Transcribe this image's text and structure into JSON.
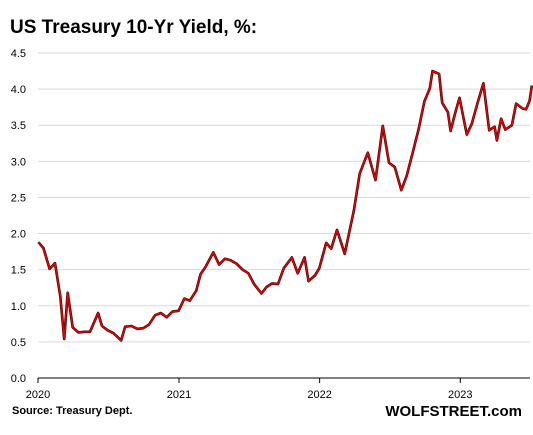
{
  "chart_data": {
    "type": "line",
    "title": "US Treasury  10-Yr Yield, %:",
    "xlabel": "",
    "ylabel": "",
    "ylim": [
      0.0,
      4.5
    ],
    "y_ticks": [
      "0.0",
      "0.5",
      "1.0",
      "1.5",
      "2.0",
      "2.5",
      "3.0",
      "3.5",
      "4.0",
      "4.5"
    ],
    "x_ticks": [
      "2020",
      "2021",
      "2022",
      "2023"
    ],
    "xlim": [
      "2020-01-01",
      "2023-07-01"
    ],
    "grid": true,
    "series": [
      {
        "color": "#e60000",
        "points": [
          [
            "2020-01-02",
            1.88
          ],
          [
            "2020-01-15",
            1.8
          ],
          [
            "2020-01-31",
            1.51
          ],
          [
            "2020-02-14",
            1.59
          ],
          [
            "2020-02-28",
            1.13
          ],
          [
            "2020-03-09",
            0.54
          ],
          [
            "2020-03-18",
            1.18
          ],
          [
            "2020-03-31",
            0.7
          ],
          [
            "2020-04-15",
            0.63
          ],
          [
            "2020-04-30",
            0.64
          ],
          [
            "2020-05-15",
            0.64
          ],
          [
            "2020-06-05",
            0.9
          ],
          [
            "2020-06-15",
            0.72
          ],
          [
            "2020-06-30",
            0.66
          ],
          [
            "2020-07-15",
            0.62
          ],
          [
            "2020-08-04",
            0.52
          ],
          [
            "2020-08-14",
            0.71
          ],
          [
            "2020-08-31",
            0.72
          ],
          [
            "2020-09-15",
            0.68
          ],
          [
            "2020-09-30",
            0.69
          ],
          [
            "2020-10-15",
            0.74
          ],
          [
            "2020-10-31",
            0.87
          ],
          [
            "2020-11-15",
            0.9
          ],
          [
            "2020-11-30",
            0.84
          ],
          [
            "2020-12-15",
            0.92
          ],
          [
            "2020-12-31",
            0.93
          ],
          [
            "2021-01-15",
            1.1
          ],
          [
            "2021-01-29",
            1.07
          ],
          [
            "2021-02-15",
            1.21
          ],
          [
            "2021-02-26",
            1.44
          ],
          [
            "2021-03-10",
            1.53
          ],
          [
            "2021-03-31",
            1.74
          ],
          [
            "2021-04-15",
            1.57
          ],
          [
            "2021-04-30",
            1.65
          ],
          [
            "2021-05-15",
            1.63
          ],
          [
            "2021-05-31",
            1.58
          ],
          [
            "2021-06-15",
            1.5
          ],
          [
            "2021-06-30",
            1.45
          ],
          [
            "2021-07-15",
            1.3
          ],
          [
            "2021-08-03",
            1.17
          ],
          [
            "2021-08-16",
            1.26
          ],
          [
            "2021-08-31",
            1.31
          ],
          [
            "2021-09-15",
            1.3
          ],
          [
            "2021-09-30",
            1.52
          ],
          [
            "2021-10-21",
            1.67
          ],
          [
            "2021-11-05",
            1.45
          ],
          [
            "2021-11-23",
            1.67
          ],
          [
            "2021-12-03",
            1.34
          ],
          [
            "2021-12-20",
            1.42
          ],
          [
            "2021-12-31",
            1.52
          ],
          [
            "2022-01-18",
            1.87
          ],
          [
            "2022-01-31",
            1.79
          ],
          [
            "2022-02-15",
            2.05
          ],
          [
            "2022-03-07",
            1.72
          ],
          [
            "2022-03-31",
            2.32
          ],
          [
            "2022-04-15",
            2.83
          ],
          [
            "2022-05-06",
            3.12
          ],
          [
            "2022-05-26",
            2.74
          ],
          [
            "2022-06-14",
            3.49
          ],
          [
            "2022-06-30",
            2.98
          ],
          [
            "2022-07-15",
            2.92
          ],
          [
            "2022-08-01",
            2.6
          ],
          [
            "2022-08-15",
            2.8
          ],
          [
            "2022-08-31",
            3.13
          ],
          [
            "2022-09-15",
            3.45
          ],
          [
            "2022-09-30",
            3.83
          ],
          [
            "2022-10-14",
            4.01
          ],
          [
            "2022-10-21",
            4.25
          ],
          [
            "2022-11-07",
            4.21
          ],
          [
            "2022-11-15",
            3.81
          ],
          [
            "2022-11-30",
            3.68
          ],
          [
            "2022-12-07",
            3.42
          ],
          [
            "2022-12-20",
            3.69
          ],
          [
            "2022-12-30",
            3.88
          ],
          [
            "2023-01-18",
            3.37
          ],
          [
            "2023-01-31",
            3.52
          ],
          [
            "2023-02-15",
            3.81
          ],
          [
            "2023-03-02",
            4.08
          ],
          [
            "2023-03-17",
            3.43
          ],
          [
            "2023-03-31",
            3.48
          ],
          [
            "2023-04-06",
            3.29
          ],
          [
            "2023-04-17",
            3.59
          ],
          [
            "2023-04-28",
            3.44
          ],
          [
            "2023-05-15",
            3.5
          ],
          [
            "2023-05-26",
            3.8
          ],
          [
            "2023-06-12",
            3.73
          ],
          [
            "2023-06-21",
            3.72
          ],
          [
            "2023-06-30",
            3.84
          ],
          [
            "2023-07-06",
            4.05
          ]
        ]
      }
    ]
  },
  "footer": {
    "source": "Source: Treasury Dept.",
    "brand": "WOLFSTREET.com"
  }
}
